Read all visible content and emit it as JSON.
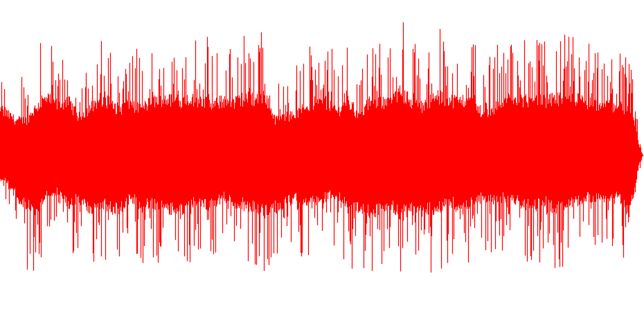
{
  "chart_data": {
    "type": "area",
    "title": "",
    "xlabel": "",
    "ylabel": "",
    "ylim": [
      -1,
      1
    ],
    "grid": false,
    "axes_visible": false,
    "color": "#ff0000",
    "background": "#ffffff",
    "envelope_bins": 62,
    "envelope_max": [
      0.62,
      0.51,
      0.51,
      0.71,
      0.82,
      0.73,
      0.8,
      0.56,
      0.67,
      0.82,
      0.73,
      0.67,
      0.76,
      0.67,
      0.78,
      0.82,
      0.8,
      0.8,
      0.82,
      0.8,
      0.73,
      0.8,
      0.76,
      0.84,
      0.82,
      0.88,
      0.51,
      0.56,
      0.6,
      0.69,
      0.78,
      0.76,
      0.64,
      0.78,
      0.56,
      0.76,
      0.78,
      0.73,
      0.92,
      0.8,
      0.69,
      0.82,
      0.84,
      0.8,
      0.8,
      0.76,
      0.6,
      0.69,
      0.82,
      0.76,
      0.8,
      0.78,
      0.78,
      0.82,
      0.8,
      0.82,
      0.76,
      0.73,
      0.73,
      0.71,
      0.69,
      0.24
    ],
    "envelope_min": [
      -0.33,
      -0.58,
      -0.73,
      -0.82,
      -0.53,
      -0.51,
      -0.71,
      -0.6,
      -0.8,
      -0.69,
      -0.76,
      -0.8,
      -0.6,
      -0.73,
      -0.69,
      -0.76,
      -0.78,
      -0.82,
      -0.69,
      -0.73,
      -0.69,
      -0.6,
      -0.69,
      -0.71,
      -0.76,
      -0.82,
      -0.76,
      -0.69,
      -0.6,
      -0.71,
      -0.64,
      -0.56,
      -0.6,
      -0.76,
      -0.76,
      -0.8,
      -0.8,
      -0.69,
      -0.84,
      -0.8,
      -0.73,
      -0.8,
      -0.73,
      -0.69,
      -0.78,
      -0.67,
      -0.6,
      -0.67,
      -0.6,
      -0.64,
      -0.71,
      -0.73,
      -0.67,
      -0.78,
      -0.69,
      -0.67,
      -0.6,
      -0.62,
      -0.6,
      -0.58,
      -0.82,
      -0.2
    ]
  }
}
